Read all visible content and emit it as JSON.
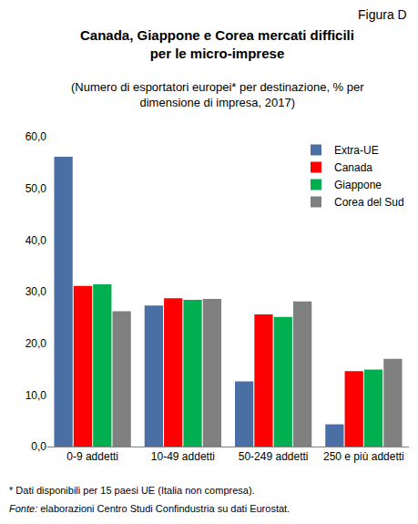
{
  "chart_data": {
    "type": "bar",
    "label": "Figura D",
    "title": "Canada, Giappone e Corea mercati difficili\nper le micro-imprese",
    "subtitle": "(Numero di esportatori europei* per destinazione, % per\ndimensione di impresa, 2017)",
    "footnote": "* Dati disponibili per 15 paesi UE (Italia non compresa).",
    "source_label": "Fonte:",
    "source": "elaborazioni Centro Studi Confindustria su dati Eurostat.",
    "categories": [
      "0-9 addetti",
      "10-49 addetti",
      "50-249 addetti",
      "250 e più addetti"
    ],
    "series": [
      {
        "name": "Extra-UE",
        "color": "#4a6fa5",
        "values": [
          56.1,
          27.3,
          12.6,
          4.3
        ]
      },
      {
        "name": "Canada",
        "color": "#ff0000",
        "values": [
          31.1,
          28.7,
          25.6,
          14.6
        ]
      },
      {
        "name": "Giappone",
        "color": "#00b050",
        "values": [
          31.4,
          28.4,
          25.1,
          14.9
        ]
      },
      {
        "name": "Corea del Sud",
        "color": "#808080",
        "values": [
          26.2,
          28.6,
          28.1,
          17.0
        ]
      }
    ],
    "ylim": [
      0,
      60
    ],
    "yticks": [
      {
        "value": 0,
        "label": "0,0"
      },
      {
        "value": 10,
        "label": "10,0"
      },
      {
        "value": 20,
        "label": "20,0"
      },
      {
        "value": 30,
        "label": "30,0"
      },
      {
        "value": 40,
        "label": "40,0"
      },
      {
        "value": 50,
        "label": "50,0"
      },
      {
        "value": 60,
        "label": "60,0"
      }
    ],
    "grid": false,
    "legend": "top right"
  }
}
